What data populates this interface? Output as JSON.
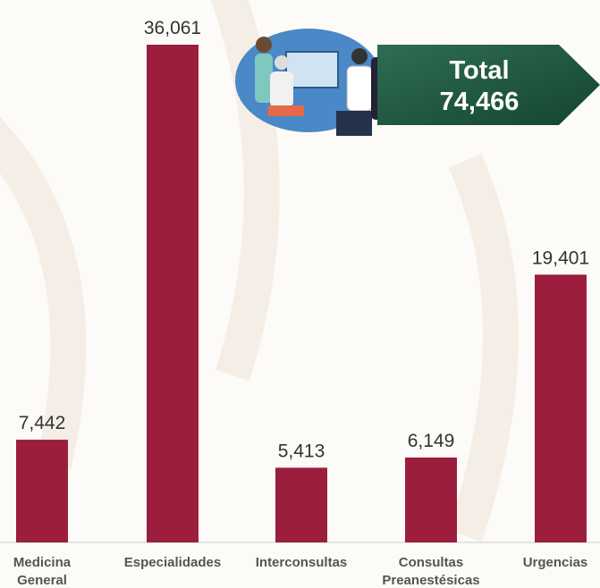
{
  "chart_data": {
    "type": "bar",
    "categories": [
      "Medicina General",
      "Especialidades",
      "Interconsultas",
      "Consultas Preanestésicas",
      "Urgencias"
    ],
    "values": [
      7442,
      36061,
      5413,
      6149,
      19401
    ],
    "value_labels": [
      "7,442",
      "36,061",
      "5,413",
      "6,149",
      "19,401"
    ],
    "color": "#9b1e3d",
    "annotation": {
      "title": "Total",
      "text": "74,466"
    }
  }
}
